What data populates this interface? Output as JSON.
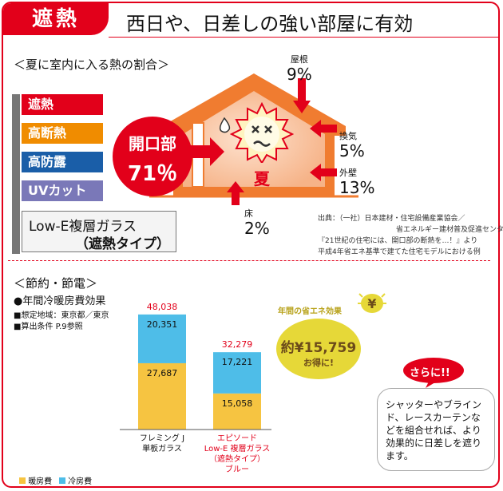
{
  "header": {
    "tag": "遮熱",
    "headline": "西日や、日差しの強い部屋に有効"
  },
  "heat": {
    "section_title": "＜夏に室内に入る熱の割合＞",
    "badge_label": "開口部",
    "badge_value": "71％",
    "season_label": "夏",
    "roof": {
      "label": "屋根",
      "value": "9%"
    },
    "vent": {
      "label": "換気",
      "value": "5%"
    },
    "wall": {
      "label": "外壁",
      "value": "13%"
    },
    "floor": {
      "label": "床",
      "value": "2%"
    }
  },
  "specs": {
    "items": [
      {
        "label": "遮熱",
        "color": "#e2001a"
      },
      {
        "label": "高断熱",
        "color": "#f08c00"
      },
      {
        "label": "高防露",
        "color": "#1a5ea8"
      },
      {
        "label": "UVカット",
        "color": "#7a78b8"
      }
    ],
    "glass_line1": "Low-E複層ガラス",
    "glass_line2": "（遮熱タイプ）"
  },
  "source": {
    "lines": [
      "出典：（一社）日本建材・住宅設備産業協会／",
      "省エネルギー建材普及促進センター",
      "『21世紀の住宅には、開口部の断熱を…！』より",
      "平成4年省エネ基準で建てた住宅モデルにおける例"
    ]
  },
  "savings": {
    "section_title": "＜節約・節電＞",
    "subtitle": "●年間冷暖房費効果",
    "cond1": "■想定地域：東京都／東京",
    "cond2": "■算出条件 P.9参照",
    "annual_label": "年間の省エネ効果",
    "yen_symbol": "¥",
    "amount": "約¥15,759",
    "otoku": "お得に!",
    "sarani": "さらに!!",
    "note": "シャッターやブラインド、レースカーテンなどを組合せれば、より効果的に日差しを遮ります。"
  },
  "colors": {
    "accent": "#e2001a",
    "house": "#f07c30",
    "heating": "#f6c441",
    "cooling": "#4ebde8"
  },
  "chart_data": {
    "type": "bar",
    "stacked": true,
    "categories": [
      "フレミング J\n単板ガラス",
      "エピソード\nLow-E 複層ガラス\n（遮熱タイプ）\nブルー"
    ],
    "series": [
      {
        "name": "暖房費",
        "values": [
          27687,
          15058
        ],
        "color": "#f6c441"
      },
      {
        "name": "冷房費",
        "values": [
          20351,
          17221
        ],
        "color": "#4ebde8"
      }
    ],
    "totals": [
      "48,038",
      "32,279"
    ],
    "value_labels": [
      [
        "27,687",
        "20,351"
      ],
      [
        "15,058",
        "17,221"
      ]
    ],
    "ylim": [
      0,
      50000
    ]
  }
}
